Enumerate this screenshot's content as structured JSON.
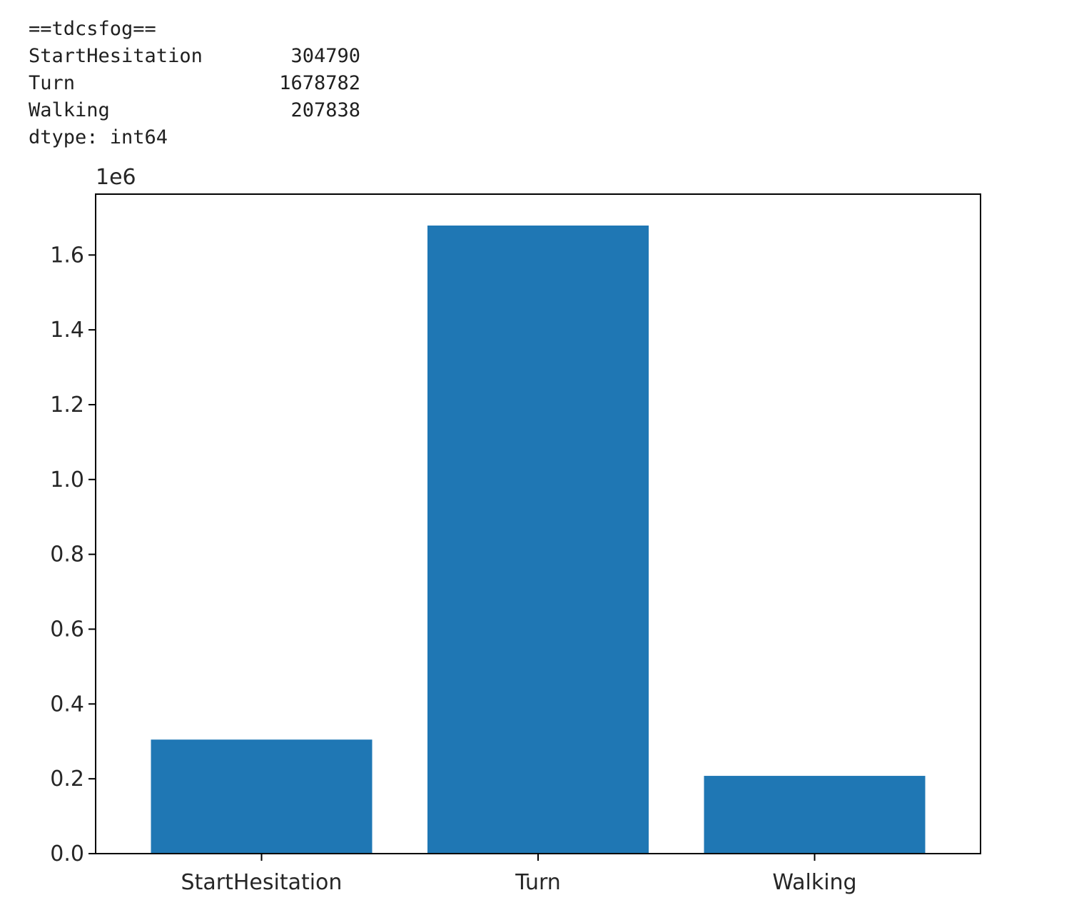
{
  "output": {
    "header": "==tdcsfog==",
    "rows": [
      {
        "label": "StartHesitation",
        "value": "304790"
      },
      {
        "label": "Turn",
        "value": "1678782"
      },
      {
        "label": "Walking",
        "value": "207838"
      }
    ],
    "dtype": "dtype: int64"
  },
  "chart_data": {
    "type": "bar",
    "categories": [
      "StartHesitation",
      "Turn",
      "Walking"
    ],
    "values": [
      304790,
      1678782,
      207838
    ],
    "title": "",
    "xlabel": "",
    "ylabel": "",
    "ylim": [
      0,
      1762721
    ],
    "yticks": [
      0,
      200000,
      400000,
      600000,
      800000,
      1000000,
      1200000,
      1400000,
      1600000
    ],
    "ytick_labels": [
      "0.0",
      "0.2",
      "0.4",
      "0.6",
      "0.8",
      "1.0",
      "1.2",
      "1.4",
      "1.6"
    ],
    "offset_text": "1e6",
    "grid": false,
    "legend": "none",
    "bar_color": "#1f77b4"
  }
}
